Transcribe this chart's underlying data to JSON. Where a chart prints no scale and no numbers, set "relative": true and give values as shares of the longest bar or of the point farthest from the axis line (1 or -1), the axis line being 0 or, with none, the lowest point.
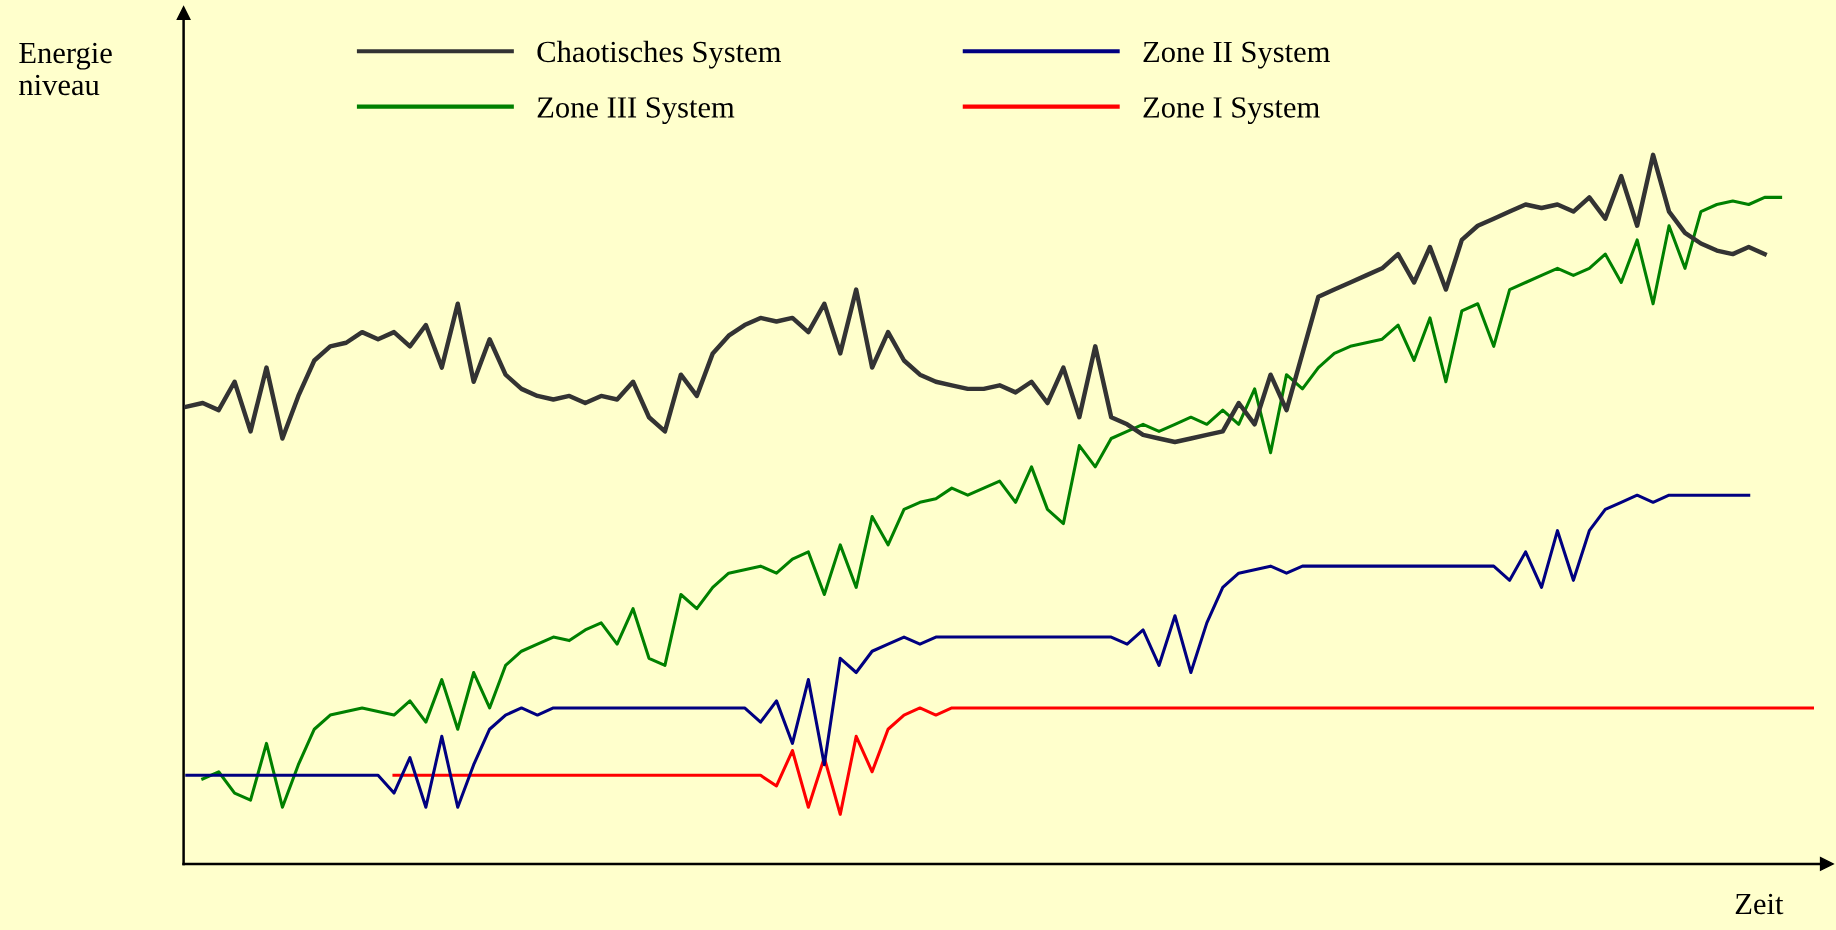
{
  "chart_data": {
    "type": "line",
    "relative": true,
    "xlabel": "Zeit",
    "ylabel": "Energie\nniveau",
    "legend": "top left",
    "marker": "none",
    "line_style": "solid",
    "categories": [
      null,
      null,
      null,
      null,
      null,
      null,
      null,
      null,
      null,
      null,
      null,
      null,
      null,
      null,
      null,
      null,
      null,
      null,
      null,
      null,
      null,
      null,
      null,
      null,
      null,
      null,
      null,
      null,
      null,
      null,
      null,
      null,
      null,
      null,
      null,
      null,
      null,
      null,
      null,
      null,
      null,
      null,
      null,
      null,
      null,
      null,
      null,
      null,
      null,
      null,
      null,
      null,
      null,
      null,
      null,
      null,
      null,
      null,
      null,
      null,
      null,
      null,
      null,
      null,
      null,
      null,
      null,
      null,
      null,
      null,
      null,
      null,
      null,
      null,
      null,
      null,
      null,
      null,
      null,
      null,
      null,
      null,
      null,
      null,
      null,
      null,
      null,
      null,
      null,
      null,
      null,
      null,
      null,
      null,
      null,
      null,
      null,
      null,
      null,
      null,
      null,
      null,
      null
    ],
    "series": [
      {
        "name": "Chaotisches System",
        "color": "#333333",
        "values": [
          0.645,
          0.65,
          0.64,
          0.68,
          0.61,
          0.7,
          0.6,
          0.66,
          0.71,
          0.73,
          0.735,
          0.75,
          0.74,
          0.75,
          0.73,
          0.76,
          0.7,
          0.79,
          0.68,
          0.74,
          0.69,
          0.67,
          0.66,
          0.655,
          0.66,
          0.65,
          0.66,
          0.655,
          0.68,
          0.63,
          0.61,
          0.69,
          0.66,
          0.72,
          0.745,
          0.76,
          0.77,
          0.765,
          0.77,
          0.75,
          0.79,
          0.72,
          0.81,
          0.7,
          0.75,
          0.71,
          0.69,
          0.68,
          0.675,
          0.67,
          0.67,
          0.675,
          0.665,
          0.68,
          0.65,
          0.7,
          0.63,
          0.73,
          0.63,
          0.62,
          0.605,
          0.6,
          0.595,
          0.6,
          0.605,
          0.61,
          0.65,
          0.62,
          0.69,
          0.64,
          0.72,
          0.8,
          0.81,
          0.82,
          0.83,
          0.84,
          0.86,
          0.82,
          0.87,
          0.81,
          0.88,
          0.9,
          0.91,
          0.92,
          0.93,
          0.925,
          0.93,
          0.92,
          0.94,
          0.91,
          0.97,
          0.9,
          1.0,
          0.92,
          0.89,
          0.875,
          0.865,
          0.86,
          0.87,
          0.86,
          null,
          null,
          null
        ]
      },
      {
        "name": "Zone III System",
        "color": "#008000",
        "values": [
          null,
          0.12,
          0.13,
          0.1,
          0.09,
          0.17,
          0.08,
          0.14,
          0.19,
          0.21,
          0.215,
          0.22,
          0.215,
          0.21,
          0.23,
          0.2,
          0.26,
          0.19,
          0.27,
          0.22,
          0.28,
          0.3,
          0.31,
          0.32,
          0.315,
          0.33,
          0.34,
          0.31,
          0.36,
          0.29,
          0.28,
          0.38,
          0.36,
          0.39,
          0.41,
          0.415,
          0.42,
          0.41,
          0.43,
          0.44,
          0.38,
          0.45,
          0.39,
          0.49,
          0.45,
          0.5,
          0.51,
          0.515,
          0.53,
          0.52,
          0.53,
          0.54,
          0.51,
          0.56,
          0.5,
          0.48,
          0.59,
          0.56,
          0.6,
          0.61,
          0.62,
          0.61,
          0.62,
          0.63,
          0.62,
          0.64,
          0.62,
          0.67,
          0.58,
          0.69,
          0.67,
          0.7,
          0.72,
          0.73,
          0.735,
          0.74,
          0.76,
          0.71,
          0.77,
          0.68,
          0.78,
          0.79,
          0.73,
          0.81,
          0.82,
          0.83,
          0.84,
          0.83,
          0.84,
          0.86,
          0.82,
          0.88,
          0.79,
          0.9,
          0.84,
          0.92,
          0.93,
          0.935,
          0.93,
          0.94,
          0.94,
          null,
          null
        ]
      },
      {
        "name": "Zone II System",
        "color": "#000080",
        "values": [
          0.125,
          0.125,
          0.125,
          0.125,
          0.125,
          0.125,
          0.125,
          0.125,
          0.125,
          0.125,
          0.125,
          0.125,
          0.125,
          0.1,
          0.15,
          0.08,
          0.18,
          0.08,
          0.14,
          0.19,
          0.21,
          0.22,
          0.21,
          0.22,
          0.22,
          0.22,
          0.22,
          0.22,
          0.22,
          0.22,
          0.22,
          0.22,
          0.22,
          0.22,
          0.22,
          0.22,
          0.2,
          0.23,
          0.17,
          0.26,
          0.14,
          0.29,
          0.27,
          0.3,
          0.31,
          0.32,
          0.31,
          0.32,
          0.32,
          0.32,
          0.32,
          0.32,
          0.32,
          0.32,
          0.32,
          0.32,
          0.32,
          0.32,
          0.32,
          0.31,
          0.33,
          0.28,
          0.35,
          0.27,
          0.34,
          0.39,
          0.41,
          0.415,
          0.42,
          0.41,
          0.42,
          0.42,
          0.42,
          0.42,
          0.42,
          0.42,
          0.42,
          0.42,
          0.42,
          0.42,
          0.42,
          0.42,
          0.42,
          0.4,
          0.44,
          0.39,
          0.47,
          0.4,
          0.47,
          0.5,
          0.51,
          0.52,
          0.51,
          0.52,
          0.52,
          0.52,
          0.52,
          0.52,
          0.52,
          null,
          null,
          null,
          null
        ]
      },
      {
        "name": "Zone I System",
        "color": "#ff0000",
        "values": [
          null,
          null,
          null,
          null,
          null,
          null,
          null,
          null,
          null,
          null,
          null,
          null,
          null,
          0.125,
          0.125,
          0.125,
          0.125,
          0.125,
          0.125,
          0.125,
          0.125,
          0.125,
          0.125,
          0.125,
          0.125,
          0.125,
          0.125,
          0.125,
          0.125,
          0.125,
          0.125,
          0.125,
          0.125,
          0.125,
          0.125,
          0.125,
          0.125,
          0.11,
          0.16,
          0.08,
          0.15,
          0.07,
          0.18,
          0.13,
          0.19,
          0.21,
          0.22,
          0.21,
          0.22,
          0.22,
          0.22,
          0.22,
          0.22,
          0.22,
          0.22,
          0.22,
          0.22,
          0.22,
          0.22,
          0.22,
          0.22,
          0.22,
          0.22,
          0.22,
          0.22,
          0.22,
          0.22,
          0.22,
          0.22,
          0.22,
          0.22,
          0.22,
          0.22,
          0.22,
          0.22,
          0.22,
          0.22,
          0.22,
          0.22,
          0.22,
          0.22,
          0.22,
          0.22,
          0.22,
          0.22,
          0.22,
          0.22,
          0.22,
          0.22,
          0.22,
          0.22,
          0.22,
          0.22,
          0.22,
          0.22,
          0.22,
          0.22,
          0.22,
          0.22,
          0.22,
          0.22,
          0.22,
          0.22
        ]
      }
    ]
  }
}
